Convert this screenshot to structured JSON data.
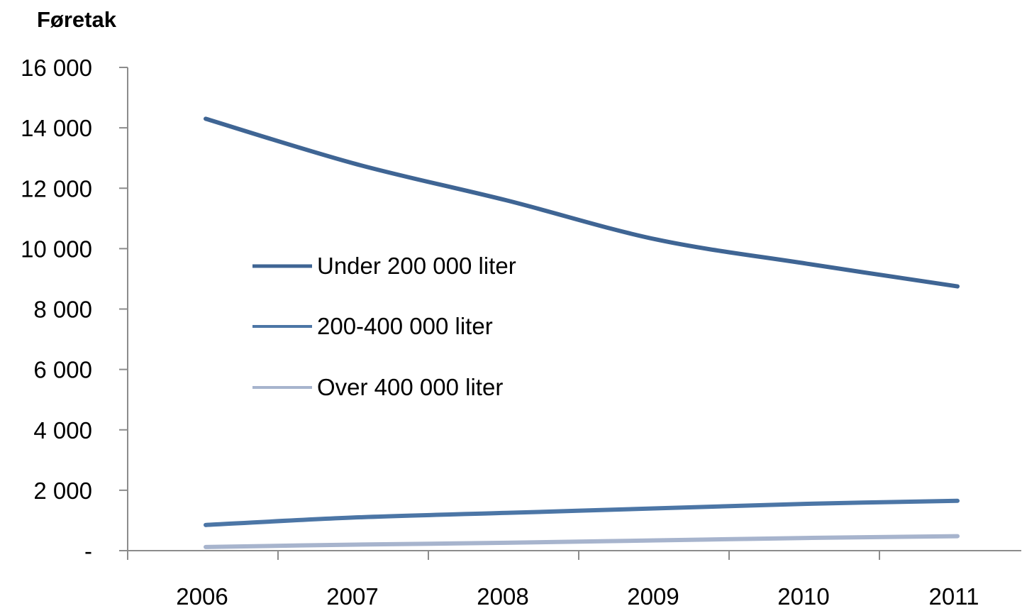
{
  "chart_data": {
    "type": "line",
    "ylabel": "Føretak",
    "xlabel": "",
    "title": "",
    "categories": [
      "2006",
      "2007",
      "2008",
      "2009",
      "2010",
      "2011"
    ],
    "ylim": [
      0,
      16000
    ],
    "y_ticks": [
      0,
      2000,
      4000,
      6000,
      8000,
      10000,
      12000,
      14000,
      16000
    ],
    "y_tick_labels": [
      "-",
      "2 000",
      "4 000",
      "6 000",
      "8 000",
      "10 000",
      "12 000",
      "14 000",
      "16 000"
    ],
    "grid": false,
    "legend_placement": "center-left inside plot",
    "series": [
      {
        "name": "Under 200 000 liter",
        "values": [
          14300,
          12800,
          11600,
          10300,
          9500,
          8750
        ],
        "color": "#3f6594"
      },
      {
        "name": "200-400 000 liter",
        "values": [
          850,
          1100,
          1250,
          1400,
          1550,
          1650
        ],
        "color": "#4c76a6"
      },
      {
        "name": "Over 400 000 liter",
        "values": [
          120,
          200,
          260,
          340,
          420,
          480
        ],
        "color": "#a7b4cd"
      }
    ]
  }
}
